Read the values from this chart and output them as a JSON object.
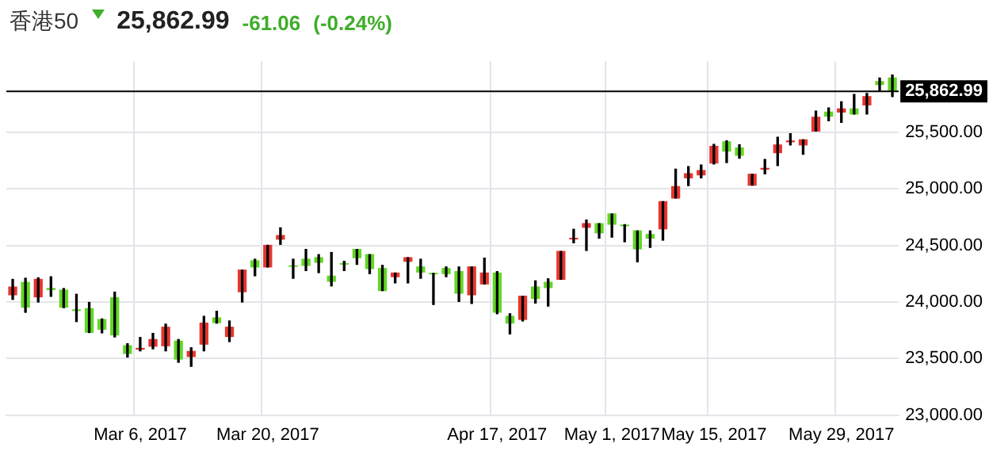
{
  "chart_data": {
    "type": "candlestick",
    "title": "香港50",
    "annotations": [
      "25,862.99",
      "-61.06",
      "(-0.24%)"
    ],
    "categories": [
      null,
      null,
      null,
      null,
      null,
      null,
      null,
      null,
      null,
      null,
      "Mar 6, 2017",
      null,
      null,
      null,
      null,
      null,
      null,
      null,
      null,
      null,
      "Mar 20, 2017",
      null,
      null,
      null,
      null,
      null,
      null,
      null,
      null,
      null,
      null,
      null,
      null,
      null,
      null,
      null,
      null,
      null,
      "Apr 17, 2017",
      null,
      null,
      null,
      null,
      null,
      null,
      null,
      null,
      "May 1, 2017",
      null,
      null,
      null,
      null,
      null,
      null,
      null,
      "May 15, 2017",
      null,
      null,
      null,
      null,
      null,
      null,
      null,
      null,
      null,
      "May 29, 2017",
      null,
      null,
      null,
      null
    ],
    "ohlc": [
      [
        24064,
        24200,
        24023,
        24132
      ],
      [
        24173,
        24210,
        23909,
        23955
      ],
      [
        24046,
        24214,
        24000,
        24200
      ],
      [
        24120,
        24223,
        24050,
        24110
      ],
      [
        24105,
        24119,
        23950,
        23955
      ],
      [
        23930,
        24068,
        23827,
        23925
      ],
      [
        23941,
        23996,
        23730,
        23732
      ],
      [
        23845,
        23850,
        23727,
        23759
      ],
      [
        24037,
        24087,
        23691,
        23709
      ],
      [
        23613,
        23631,
        23513,
        23545
      ],
      [
        23583,
        23686,
        23568,
        23590
      ],
      [
        23609,
        23722,
        23586,
        23668
      ],
      [
        23613,
        23804,
        23568,
        23777
      ],
      [
        23654,
        23668,
        23467,
        23495
      ],
      [
        23518,
        23595,
        23431,
        23563
      ],
      [
        23627,
        23873,
        23568,
        23813
      ],
      [
        23859,
        23918,
        23813,
        23818
      ],
      [
        23695,
        23832,
        23650,
        23777
      ],
      [
        24091,
        24282,
        24000,
        24282
      ],
      [
        24364,
        24378,
        24232,
        24310
      ],
      [
        24310,
        24501,
        24310,
        24501
      ],
      [
        24556,
        24656,
        24510,
        24588
      ],
      [
        24320,
        24378,
        24210,
        24316
      ],
      [
        24378,
        24465,
        24278,
        24324
      ],
      [
        24392,
        24419,
        24260,
        24351
      ],
      [
        24228,
        24438,
        24142,
        24183
      ],
      [
        24340,
        24360,
        24278,
        24335
      ],
      [
        24465,
        24465,
        24333,
        24392
      ],
      [
        24419,
        24419,
        24251,
        24296
      ],
      [
        24296,
        24324,
        24101,
        24101
      ],
      [
        24224,
        24256,
        24169,
        24256
      ],
      [
        24360,
        24392,
        24169,
        24392
      ],
      [
        24310,
        24378,
        24210,
        24265
      ],
      [
        24253,
        24253,
        23978,
        24249
      ],
      [
        24296,
        24310,
        24224,
        24251
      ],
      [
        24269,
        24310,
        24005,
        24078
      ],
      [
        24064,
        24310,
        23987,
        24310
      ],
      [
        24160,
        24388,
        24160,
        24256
      ],
      [
        24256,
        24269,
        23896,
        23910
      ],
      [
        23873,
        23896,
        23718,
        23814
      ],
      [
        23846,
        24051,
        23832,
        24051
      ],
      [
        24133,
        24187,
        23991,
        24032
      ],
      [
        24174,
        24205,
        23964,
        24128
      ],
      [
        24201,
        24447,
        24201,
        24447
      ],
      [
        24558,
        24643,
        24524,
        24563
      ],
      [
        24661,
        24725,
        24456,
        24693
      ],
      [
        24693,
        24693,
        24565,
        24611
      ],
      [
        24779,
        24779,
        24574,
        24688
      ],
      [
        24680,
        24684,
        24533,
        24675
      ],
      [
        24629,
        24629,
        24356,
        24470
      ],
      [
        24597,
        24629,
        24483,
        24565
      ],
      [
        24647,
        24888,
        24547,
        24888
      ],
      [
        24920,
        25175,
        24920,
        25020
      ],
      [
        25098,
        25198,
        25030,
        25134
      ],
      [
        25125,
        25212,
        25098,
        25162
      ],
      [
        25230,
        25394,
        25221,
        25376
      ],
      [
        25417,
        25426,
        25234,
        25335
      ],
      [
        25362,
        25390,
        25271,
        25298
      ],
      [
        25034,
        25129,
        25034,
        25129
      ],
      [
        25175,
        25261,
        25134,
        25182
      ],
      [
        25321,
        25457,
        25207,
        25389
      ],
      [
        25418,
        25489,
        25389,
        25424
      ],
      [
        25389,
        25434,
        25307,
        25434
      ],
      [
        25512,
        25689,
        25512,
        25635
      ],
      [
        25680,
        25717,
        25603,
        25644
      ],
      [
        25680,
        25771,
        25589,
        25708
      ],
      [
        25708,
        25835,
        25662,
        25662
      ],
      [
        25744,
        25844,
        25662,
        25817
      ],
      [
        25950,
        25981,
        25871,
        25924
      ],
      [
        25981,
        26008,
        25817,
        25862.99
      ]
    ],
    "colors": [
      "#e8352f",
      "#62d626",
      "#e8352f",
      "#62d626",
      "#62d626",
      "#62d626",
      "#62d626",
      "#62d626",
      "#62d626",
      "#62d626",
      "#e8352f",
      "#e8352f",
      "#e8352f",
      "#62d626",
      "#e8352f",
      "#e8352f",
      "#62d626",
      "#e8352f",
      "#e8352f",
      "#62d626",
      "#e8352f",
      "#e8352f",
      "#62d626",
      "#62d626",
      "#62d626",
      "#62d626",
      "#62d626",
      "#62d626",
      "#62d626",
      "#62d626",
      "#e8352f",
      "#e8352f",
      "#62d626",
      "#62d626",
      "#62d626",
      "#62d626",
      "#e8352f",
      "#e8352f",
      "#62d626",
      "#62d626",
      "#e8352f",
      "#62d626",
      "#62d626",
      "#e8352f",
      "#e8352f",
      "#e8352f",
      "#62d626",
      "#62d626",
      "#62d626",
      "#62d626",
      "#62d626",
      "#e8352f",
      "#e8352f",
      "#e8352f",
      "#e8352f",
      "#e8352f",
      "#62d626",
      "#62d626",
      "#e8352f",
      "#e8352f",
      "#e8352f",
      "#e8352f",
      "#e8352f",
      "#e8352f",
      "#62d626",
      "#e8352f",
      "#62d626",
      "#e8352f",
      "#62d626",
      "#62d626"
    ],
    "ylim": [
      23000,
      26130
    ],
    "yticks": [
      {
        "value": 23000,
        "label": "23,000.00"
      },
      {
        "value": 23500,
        "label": "23,500.00"
      },
      {
        "value": 24000,
        "label": "24,000.00"
      },
      {
        "value": 24500,
        "label": "24,500.00"
      },
      {
        "value": 25000,
        "label": "25,000.00"
      },
      {
        "value": 25500,
        "label": "25,500.00"
      }
    ],
    "ref_lines": [
      {
        "axis": "y",
        "value": 25862.99,
        "label": "25,862.99",
        "color": "#000000"
      }
    ],
    "grid": true,
    "legend": false
  }
}
